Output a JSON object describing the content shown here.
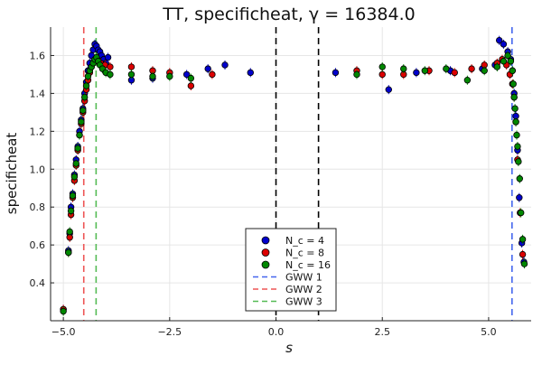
{
  "chart_data": {
    "type": "scatter",
    "title": "TT, specificheat, γ = 16384.0",
    "xlabel": "s",
    "ylabel": "specificheat",
    "xlim": [
      -5.3,
      6.0
    ],
    "ylim": [
      0.2,
      1.75
    ],
    "xticks": [
      -5.0,
      -2.5,
      0.0,
      2.5,
      5.0
    ],
    "xtick_labels": [
      "−5.0",
      "−2.5",
      "0.0",
      "2.5",
      "5.0"
    ],
    "yticks": [
      0.4,
      0.6,
      0.8,
      1.0,
      1.2,
      1.4,
      1.6
    ],
    "ytick_labels": [
      "0.4",
      "0.6",
      "0.8",
      "1.0",
      "1.2",
      "1.4",
      "1.6"
    ],
    "grid": true,
    "legend_position": "bottom-center",
    "series": [
      {
        "name": "N_c = 4",
        "color": "#0000cc",
        "points": [
          [
            -5.0,
            0.26
          ],
          [
            -4.88,
            0.57
          ],
          [
            -4.85,
            0.66
          ],
          [
            -4.82,
            0.8
          ],
          [
            -4.78,
            0.87
          ],
          [
            -4.74,
            0.97
          ],
          [
            -4.7,
            1.05
          ],
          [
            -4.66,
            1.12
          ],
          [
            -4.62,
            1.2
          ],
          [
            -4.58,
            1.26
          ],
          [
            -4.54,
            1.32
          ],
          [
            -4.5,
            1.4
          ],
          [
            -4.46,
            1.46
          ],
          [
            -4.42,
            1.52
          ],
          [
            -4.38,
            1.56
          ],
          [
            -4.34,
            1.6
          ],
          [
            -4.3,
            1.63
          ],
          [
            -4.26,
            1.66
          ],
          [
            -4.22,
            1.65
          ],
          [
            -4.18,
            1.63
          ],
          [
            -4.14,
            1.62
          ],
          [
            -4.1,
            1.6
          ],
          [
            -4.05,
            1.58
          ],
          [
            -4.0,
            1.56
          ],
          [
            -3.95,
            1.59
          ],
          [
            -3.4,
            1.47
          ],
          [
            -2.9,
            1.48
          ],
          [
            -2.1,
            1.5
          ],
          [
            -1.6,
            1.53
          ],
          [
            -1.2,
            1.55
          ],
          [
            -0.6,
            1.51
          ],
          [
            1.4,
            1.51
          ],
          [
            2.65,
            1.42
          ],
          [
            3.3,
            1.51
          ],
          [
            4.1,
            1.52
          ],
          [
            4.85,
            1.53
          ],
          [
            5.15,
            1.55
          ],
          [
            5.25,
            1.68
          ],
          [
            5.35,
            1.66
          ],
          [
            5.45,
            1.62
          ],
          [
            5.52,
            1.58
          ],
          [
            5.56,
            1.52
          ],
          [
            5.6,
            1.4
          ],
          [
            5.64,
            1.28
          ],
          [
            5.68,
            1.1
          ],
          [
            5.72,
            0.85
          ],
          [
            5.78,
            0.61
          ],
          [
            5.83,
            0.51
          ]
        ]
      },
      {
        "name": "N_c = 8",
        "color": "#dd0000",
        "points": [
          [
            -5.0,
            0.26
          ],
          [
            -4.88,
            0.56
          ],
          [
            -4.85,
            0.64
          ],
          [
            -4.82,
            0.76
          ],
          [
            -4.78,
            0.85
          ],
          [
            -4.74,
            0.94
          ],
          [
            -4.7,
            1.02
          ],
          [
            -4.66,
            1.1
          ],
          [
            -4.62,
            1.18
          ],
          [
            -4.58,
            1.24
          ],
          [
            -4.54,
            1.3
          ],
          [
            -4.5,
            1.36
          ],
          [
            -4.46,
            1.42
          ],
          [
            -4.42,
            1.47
          ],
          [
            -4.38,
            1.51
          ],
          [
            -4.34,
            1.54
          ],
          [
            -4.3,
            1.56
          ],
          [
            -4.26,
            1.57
          ],
          [
            -4.2,
            1.58
          ],
          [
            -4.12,
            1.56
          ],
          [
            -4.02,
            1.55
          ],
          [
            -3.9,
            1.54
          ],
          [
            -3.4,
            1.54
          ],
          [
            -2.9,
            1.52
          ],
          [
            -2.5,
            1.51
          ],
          [
            -2.0,
            1.44
          ],
          [
            -1.5,
            1.5
          ],
          [
            1.9,
            1.52
          ],
          [
            2.5,
            1.5
          ],
          [
            3.0,
            1.5
          ],
          [
            3.6,
            1.52
          ],
          [
            4.2,
            1.51
          ],
          [
            4.6,
            1.53
          ],
          [
            4.9,
            1.55
          ],
          [
            5.2,
            1.56
          ],
          [
            5.32,
            1.58
          ],
          [
            5.42,
            1.55
          ],
          [
            5.5,
            1.5
          ],
          [
            5.56,
            1.45
          ],
          [
            5.6,
            1.38
          ],
          [
            5.64,
            1.25
          ],
          [
            5.68,
            1.05
          ],
          [
            5.74,
            0.77
          ],
          [
            5.8,
            0.55
          ]
        ]
      },
      {
        "name": "N_c = 16",
        "color": "#008800",
        "points": [
          [
            -5.0,
            0.25
          ],
          [
            -4.88,
            0.56
          ],
          [
            -4.85,
            0.67
          ],
          [
            -4.82,
            0.78
          ],
          [
            -4.78,
            0.86
          ],
          [
            -4.74,
            0.96
          ],
          [
            -4.7,
            1.03
          ],
          [
            -4.66,
            1.11
          ],
          [
            -4.62,
            1.18
          ],
          [
            -4.58,
            1.25
          ],
          [
            -4.54,
            1.31
          ],
          [
            -4.5,
            1.38
          ],
          [
            -4.46,
            1.44
          ],
          [
            -4.42,
            1.49
          ],
          [
            -4.38,
            1.52
          ],
          [
            -4.34,
            1.54
          ],
          [
            -4.3,
            1.56
          ],
          [
            -4.26,
            1.58
          ],
          [
            -4.22,
            1.59
          ],
          [
            -4.18,
            1.57
          ],
          [
            -4.14,
            1.55
          ],
          [
            -4.08,
            1.53
          ],
          [
            -4.0,
            1.51
          ],
          [
            -3.9,
            1.5
          ],
          [
            -3.4,
            1.5
          ],
          [
            -2.9,
            1.49
          ],
          [
            -2.5,
            1.49
          ],
          [
            -2.0,
            1.48
          ],
          [
            1.9,
            1.5
          ],
          [
            2.5,
            1.54
          ],
          [
            3.0,
            1.53
          ],
          [
            3.5,
            1.52
          ],
          [
            4.0,
            1.53
          ],
          [
            4.5,
            1.47
          ],
          [
            4.9,
            1.52
          ],
          [
            5.2,
            1.54
          ],
          [
            5.35,
            1.57
          ],
          [
            5.45,
            1.6
          ],
          [
            5.52,
            1.57
          ],
          [
            5.56,
            1.52
          ],
          [
            5.58,
            1.45
          ],
          [
            5.6,
            1.38
          ],
          [
            5.62,
            1.32
          ],
          [
            5.64,
            1.25
          ],
          [
            5.66,
            1.18
          ],
          [
            5.68,
            1.12
          ],
          [
            5.7,
            1.04
          ],
          [
            5.73,
            0.95
          ],
          [
            5.76,
            0.77
          ],
          [
            5.8,
            0.63
          ],
          [
            5.84,
            0.5
          ]
        ]
      }
    ],
    "vertical_lines": [
      {
        "name": "GWW 1",
        "x": 5.55,
        "color": "#4466ee",
        "dash": "7,5"
      },
      {
        "name": "GWW 2",
        "x": -4.52,
        "color": "#ee5555",
        "dash": "7,5"
      },
      {
        "name": "GWW 3",
        "x": -4.23,
        "color": "#55bb55",
        "dash": "7,5"
      },
      {
        "name": "",
        "x": 0.0,
        "color": "#000000",
        "dash": "7,5"
      },
      {
        "name": "",
        "x": 1.0,
        "color": "#000000",
        "dash": "7,5"
      }
    ],
    "legend": [
      {
        "label": "N_c = 4",
        "kind": "marker",
        "color": "#0000cc"
      },
      {
        "label": "N_c = 8",
        "kind": "marker",
        "color": "#dd0000"
      },
      {
        "label": "N_c = 16",
        "kind": "marker",
        "color": "#008800"
      },
      {
        "label": "GWW 1",
        "kind": "line",
        "color": "#4466ee"
      },
      {
        "label": "GWW 2",
        "kind": "line",
        "color": "#ee5555"
      },
      {
        "label": "GWW 3",
        "kind": "line",
        "color": "#55bb55"
      }
    ]
  }
}
